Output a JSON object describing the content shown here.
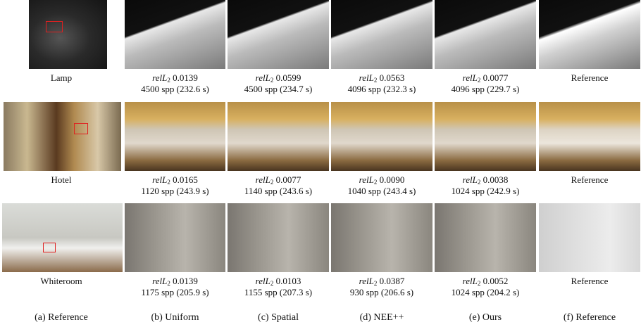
{
  "rows": [
    {
      "scene": "Lamp",
      "results": [
        {
          "metric": "relL",
          "subscript": "2",
          "value": "0.0139",
          "samples": "4500 spp (232.6 s)"
        },
        {
          "metric": "relL",
          "subscript": "2",
          "value": "0.0599",
          "samples": "4500 spp (234.7 s)"
        },
        {
          "metric": "relL",
          "subscript": "2",
          "value": "0.0563",
          "samples": "4096 spp (232.3 s)"
        },
        {
          "metric": "relL",
          "subscript": "2",
          "value": "0.0077",
          "samples": "4096 spp (229.7 s)"
        }
      ],
      "reference": "Reference"
    },
    {
      "scene": "Hotel",
      "results": [
        {
          "metric": "relL",
          "subscript": "2",
          "value": "0.0165",
          "samples": "1120 spp (243.9 s)"
        },
        {
          "metric": "relL",
          "subscript": "2",
          "value": "0.0077",
          "samples": "1140 spp (243.6 s)"
        },
        {
          "metric": "relL",
          "subscript": "2",
          "value": "0.0090",
          "samples": "1040 spp (243.4 s)"
        },
        {
          "metric": "relL",
          "subscript": "2",
          "value": "0.0038",
          "samples": "1024 spp (242.9 s)"
        }
      ],
      "reference": "Reference"
    },
    {
      "scene": "Whiteroom",
      "results": [
        {
          "metric": "relL",
          "subscript": "2",
          "value": "0.0139",
          "samples": "1175 spp (205.9 s)"
        },
        {
          "metric": "relL",
          "subscript": "2",
          "value": "0.0103",
          "samples": "1155 spp (207.3 s)"
        },
        {
          "metric": "relL",
          "subscript": "2",
          "value": "0.0387",
          "samples": "930 spp (206.6 s)"
        },
        {
          "metric": "relL",
          "subscript": "2",
          "value": "0.0052",
          "samples": "1024 spp (204.2 s)"
        }
      ],
      "reference": "Reference"
    }
  ],
  "columns": [
    "(a) Reference",
    "(b) Uniform",
    "(c) Spatial",
    "(d) NEE++",
    "(e) Ours",
    "(f) Reference"
  ]
}
